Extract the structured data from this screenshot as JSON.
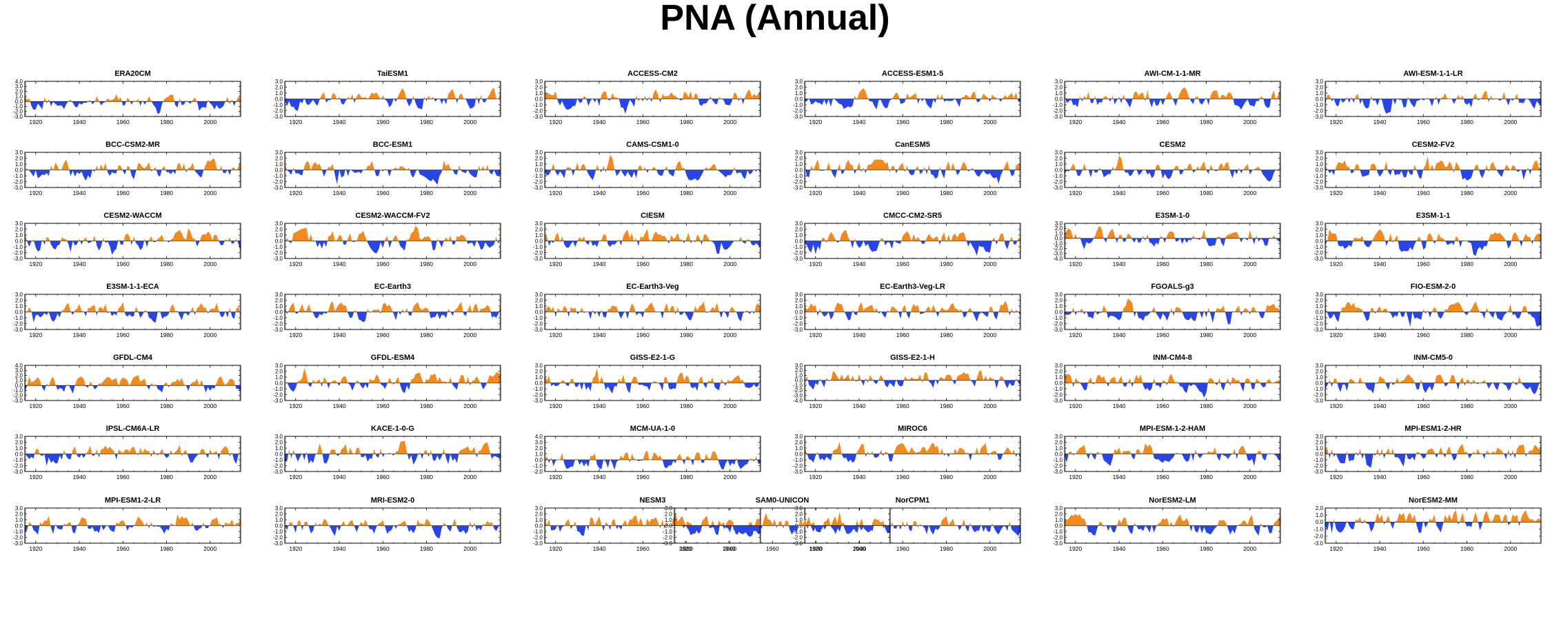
{
  "page": {
    "title": "PNA (Annual)"
  },
  "colors": {
    "positive": "#f28a1e",
    "negative": "#2945e6",
    "axis": "#000000"
  },
  "chart_data": [
    {
      "type": "area",
      "title": "ERA20CM",
      "ylim": [
        -3,
        4
      ],
      "ytick_labels": [
        "-3.0",
        "-2.0",
        "-1.0",
        "0.0",
        "1.0",
        "2.0",
        "3.0",
        "4.0"
      ],
      "xtick_labels": [
        "1920",
        "1940",
        "1960",
        "1980",
        "2000"
      ],
      "x_range": [
        1915,
        2014
      ],
      "seed": 11
    },
    {
      "type": "area",
      "title": "TaiESM1",
      "ylim": [
        -3,
        3
      ],
      "ytick_labels": [
        "-3.0",
        "-2.0",
        "-1.0",
        "0.0",
        "1.0",
        "2.0",
        "3.0"
      ],
      "xtick_labels": [
        "1920",
        "1940",
        "1960",
        "1980",
        "2000"
      ],
      "x_range": [
        1915,
        2014
      ],
      "seed": 12
    },
    {
      "type": "area",
      "title": "ACCESS-CM2",
      "ylim": [
        -3,
        3
      ],
      "ytick_labels": [
        "-3.0",
        "-2.0",
        "-1.0",
        "0.0",
        "1.0",
        "2.0",
        "3.0"
      ],
      "xtick_labels": [
        "1920",
        "1940",
        "1960",
        "1980",
        "2000"
      ],
      "x_range": [
        1915,
        2014
      ],
      "seed": 13
    },
    {
      "type": "area",
      "title": "ACCESS-ESM1-5",
      "ylim": [
        -3,
        3
      ],
      "ytick_labels": [
        "-3.0",
        "-2.0",
        "-1.0",
        "0.0",
        "1.0",
        "2.0",
        "3.0"
      ],
      "xtick_labels": [
        "1920",
        "1940",
        "1960",
        "1980",
        "2000"
      ],
      "x_range": [
        1915,
        2014
      ],
      "seed": 14
    },
    {
      "type": "area",
      "title": "AWI-CM-1-1-MR",
      "ylim": [
        -3,
        3
      ],
      "ytick_labels": [
        "-3.0",
        "-2.0",
        "-1.0",
        "0.0",
        "1.0",
        "2.0",
        "3.0"
      ],
      "xtick_labels": [
        "1920",
        "1940",
        "1960",
        "1980",
        "2000"
      ],
      "x_range": [
        1915,
        2014
      ],
      "seed": 15
    },
    {
      "type": "area",
      "title": "AWI-ESM-1-1-LR",
      "ylim": [
        -3,
        3
      ],
      "ytick_labels": [
        "-3.0",
        "-2.0",
        "-1.0",
        "0.0",
        "1.0",
        "2.0",
        "3.0"
      ],
      "xtick_labels": [
        "1920",
        "1940",
        "1960",
        "1980",
        "2000"
      ],
      "x_range": [
        1915,
        2014
      ],
      "seed": 16
    },
    {
      "type": "area",
      "title": "BCC-CSM2-MR",
      "ylim": [
        -3,
        3
      ],
      "ytick_labels": [
        "-3.0",
        "-2.0",
        "-1.0",
        "0.0",
        "1.0",
        "2.0",
        "3.0"
      ],
      "xtick_labels": [
        "1920",
        "1940",
        "1960",
        "1980",
        "2000"
      ],
      "x_range": [
        1915,
        2014
      ],
      "seed": 21
    },
    {
      "type": "area",
      "title": "BCC-ESM1",
      "ylim": [
        -3,
        3
      ],
      "ytick_labels": [
        "-3.0",
        "-2.0",
        "-1.0",
        "0.0",
        "1.0",
        "2.0",
        "3.0"
      ],
      "xtick_labels": [
        "1920",
        "1940",
        "1960",
        "1980",
        "2000"
      ],
      "x_range": [
        1915,
        2014
      ],
      "seed": 22
    },
    {
      "type": "area",
      "title": "CAMS-CSM1-0",
      "ylim": [
        -3,
        3
      ],
      "ytick_labels": [
        "-3.0",
        "-2.0",
        "-1.0",
        "0.0",
        "1.0",
        "2.0",
        "3.0"
      ],
      "xtick_labels": [
        "1920",
        "1940",
        "1960",
        "1980",
        "2000"
      ],
      "x_range": [
        1915,
        2014
      ],
      "seed": 23
    },
    {
      "type": "area",
      "title": "CanESM5",
      "ylim": [
        -3,
        3
      ],
      "ytick_labels": [
        "-3.0",
        "-2.0",
        "-1.0",
        "0.0",
        "1.0",
        "2.0",
        "3.0"
      ],
      "xtick_labels": [
        "1920",
        "1940",
        "1960",
        "1980",
        "2000"
      ],
      "x_range": [
        1915,
        2014
      ],
      "seed": 24
    },
    {
      "type": "area",
      "title": "CESM2",
      "ylim": [
        -3,
        3
      ],
      "ytick_labels": [
        "-3.0",
        "-2.0",
        "-1.0",
        "0.0",
        "1.0",
        "2.0",
        "3.0"
      ],
      "xtick_labels": [
        "1920",
        "1940",
        "1960",
        "1980",
        "2000"
      ],
      "x_range": [
        1915,
        2014
      ],
      "seed": 25
    },
    {
      "type": "area",
      "title": "CESM2-FV2",
      "ylim": [
        -3,
        3
      ],
      "ytick_labels": [
        "-3.0",
        "-2.0",
        "-1.0",
        "0.0",
        "1.0",
        "2.0",
        "3.0"
      ],
      "xtick_labels": [
        "1920",
        "1940",
        "1960",
        "1980",
        "2000"
      ],
      "x_range": [
        1915,
        2014
      ],
      "seed": 26
    },
    {
      "type": "area",
      "title": "CESM2-WACCM",
      "ylim": [
        -3,
        3
      ],
      "ytick_labels": [
        "-3.0",
        "-2.0",
        "-1.0",
        "0.0",
        "1.0",
        "2.0",
        "3.0"
      ],
      "xtick_labels": [
        "1920",
        "1940",
        "1960",
        "1980",
        "2000"
      ],
      "x_range": [
        1915,
        2014
      ],
      "seed": 31
    },
    {
      "type": "area",
      "title": "CESM2-WACCM-FV2",
      "ylim": [
        -3,
        3
      ],
      "ytick_labels": [
        "-3.0",
        "-2.0",
        "-1.0",
        "0.0",
        "1.0",
        "2.0",
        "3.0"
      ],
      "xtick_labels": [
        "1920",
        "1940",
        "1960",
        "1980",
        "2000"
      ],
      "x_range": [
        1915,
        2014
      ],
      "seed": 32
    },
    {
      "type": "area",
      "title": "CIESM",
      "ylim": [
        -3,
        3
      ],
      "ytick_labels": [
        "-3.0",
        "-2.0",
        "-1.0",
        "0.0",
        "1.0",
        "2.0",
        "3.0"
      ],
      "xtick_labels": [
        "1920",
        "1940",
        "1960",
        "1980",
        "2000"
      ],
      "x_range": [
        1915,
        2014
      ],
      "seed": 33
    },
    {
      "type": "area",
      "title": "CMCC-CM2-SR5",
      "ylim": [
        -3,
        3
      ],
      "ytick_labels": [
        "-3.0",
        "-2.0",
        "-1.0",
        "0.0",
        "1.0",
        "2.0",
        "3.0"
      ],
      "xtick_labels": [
        "1920",
        "1940",
        "1960",
        "1980",
        "2000"
      ],
      "x_range": [
        1915,
        2014
      ],
      "seed": 34
    },
    {
      "type": "area",
      "title": "E3SM-1-0",
      "ylim": [
        -4,
        3
      ],
      "ytick_labels": [
        "-4.0",
        "-3.0",
        "-2.0",
        "-1.0",
        "0.0",
        "1.0",
        "2.0",
        "3.0"
      ],
      "xtick_labels": [
        "1920",
        "1940",
        "1960",
        "1980",
        "2000"
      ],
      "x_range": [
        1915,
        2014
      ],
      "seed": 35
    },
    {
      "type": "area",
      "title": "E3SM-1-1",
      "ylim": [
        -3,
        3
      ],
      "ytick_labels": [
        "-3.0",
        "-2.0",
        "-1.0",
        "0.0",
        "1.0",
        "2.0",
        "3.0"
      ],
      "xtick_labels": [
        "1920",
        "1940",
        "1960",
        "1980",
        "2000"
      ],
      "x_range": [
        1915,
        2014
      ],
      "seed": 36
    },
    {
      "type": "area",
      "title": "E3SM-1-1-ECA",
      "ylim": [
        -3,
        3
      ],
      "ytick_labels": [
        "-3.0",
        "-2.0",
        "-1.0",
        "0.0",
        "1.0",
        "2.0",
        "3.0"
      ],
      "xtick_labels": [
        "1920",
        "1940",
        "1960",
        "1980",
        "2000"
      ],
      "x_range": [
        1915,
        2014
      ],
      "seed": 41
    },
    {
      "type": "area",
      "title": "EC-Earth3",
      "ylim": [
        -3,
        3
      ],
      "ytick_labels": [
        "-3.0",
        "-2.0",
        "-1.0",
        "0.0",
        "1.0",
        "2.0",
        "3.0"
      ],
      "xtick_labels": [
        "1920",
        "1940",
        "1960",
        "1980",
        "2000"
      ],
      "x_range": [
        1915,
        2014
      ],
      "seed": 42
    },
    {
      "type": "area",
      "title": "EC-Earth3-Veg",
      "ylim": [
        -3,
        3
      ],
      "ytick_labels": [
        "-3.0",
        "-2.0",
        "-1.0",
        "0.0",
        "1.0",
        "2.0",
        "3.0"
      ],
      "xtick_labels": [
        "1920",
        "1940",
        "1960",
        "1980",
        "2000"
      ],
      "x_range": [
        1915,
        2014
      ],
      "seed": 43
    },
    {
      "type": "area",
      "title": "EC-Earth3-Veg-LR",
      "ylim": [
        -3,
        3
      ],
      "ytick_labels": [
        "-3.0",
        "-2.0",
        "-1.0",
        "0.0",
        "1.0",
        "2.0",
        "3.0"
      ],
      "xtick_labels": [
        "1920",
        "1940",
        "1960",
        "1980",
        "2000"
      ],
      "x_range": [
        1915,
        2014
      ],
      "seed": 44
    },
    {
      "type": "area",
      "title": "FGOALS-g3",
      "ylim": [
        -3,
        3
      ],
      "ytick_labels": [
        "-3.0",
        "-2.0",
        "-1.0",
        "0.0",
        "1.0",
        "2.0",
        "3.0"
      ],
      "xtick_labels": [
        "1920",
        "1940",
        "1960",
        "1980",
        "2000"
      ],
      "x_range": [
        1915,
        2014
      ],
      "seed": 45
    },
    {
      "type": "area",
      "title": "FIO-ESM-2-0",
      "ylim": [
        -3,
        3
      ],
      "ytick_labels": [
        "-3.0",
        "-2.0",
        "-1.0",
        "0.0",
        "1.0",
        "2.0",
        "3.0"
      ],
      "xtick_labels": [
        "1920",
        "1940",
        "1960",
        "1980",
        "2000"
      ],
      "x_range": [
        1915,
        2014
      ],
      "seed": 46
    },
    {
      "type": "area",
      "title": "GFDL-CM4",
      "ylim": [
        -3,
        4
      ],
      "ytick_labels": [
        "-3.0",
        "-2.0",
        "-1.0",
        "0.0",
        "1.0",
        "2.0",
        "3.0",
        "4.0"
      ],
      "xtick_labels": [
        "1920",
        "1940",
        "1960",
        "1980",
        "2000"
      ],
      "x_range": [
        1915,
        2014
      ],
      "seed": 51
    },
    {
      "type": "area",
      "title": "GFDL-ESM4",
      "ylim": [
        -3,
        3
      ],
      "ytick_labels": [
        "-3.0",
        "-2.0",
        "-1.0",
        "0.0",
        "1.0",
        "2.0",
        "3.0"
      ],
      "xtick_labels": [
        "1920",
        "1940",
        "1960",
        "1980",
        "2000"
      ],
      "x_range": [
        1915,
        2014
      ],
      "seed": 52
    },
    {
      "type": "area",
      "title": "GISS-E2-1-G",
      "ylim": [
        -3,
        3
      ],
      "ytick_labels": [
        "-3.0",
        "-2.0",
        "-1.0",
        "0.0",
        "1.0",
        "2.0",
        "3.0"
      ],
      "xtick_labels": [
        "1920",
        "1940",
        "1960",
        "1980",
        "2000"
      ],
      "x_range": [
        1915,
        2014
      ],
      "seed": 53
    },
    {
      "type": "area",
      "title": "GISS-E2-1-H",
      "ylim": [
        -4,
        3
      ],
      "ytick_labels": [
        "-4.0",
        "-3.0",
        "-2.0",
        "-1.0",
        "0.0",
        "1.0",
        "2.0",
        "3.0"
      ],
      "xtick_labels": [
        "1920",
        "1940",
        "1960",
        "1980",
        "2000"
      ],
      "x_range": [
        1915,
        2014
      ],
      "seed": 54
    },
    {
      "type": "area",
      "title": "INM-CM4-8",
      "ylim": [
        -3,
        3
      ],
      "ytick_labels": [
        "-3.0",
        "-2.0",
        "-1.0",
        "0.0",
        "1.0",
        "2.0",
        "3.0"
      ],
      "xtick_labels": [
        "1920",
        "1940",
        "1960",
        "1980",
        "2000"
      ],
      "x_range": [
        1915,
        2014
      ],
      "seed": 55
    },
    {
      "type": "area",
      "title": "INM-CM5-0",
      "ylim": [
        -3,
        3
      ],
      "ytick_labels": [
        "-3.0",
        "-2.0",
        "-1.0",
        "0.0",
        "1.0",
        "2.0",
        "3.0"
      ],
      "xtick_labels": [
        "1920",
        "1940",
        "1960",
        "1980",
        "2000"
      ],
      "x_range": [
        1915,
        2014
      ],
      "seed": 56
    },
    {
      "type": "area",
      "title": "IPSL-CM6A-LR",
      "ylim": [
        -3,
        3
      ],
      "ytick_labels": [
        "-3.0",
        "-2.0",
        "-1.0",
        "0.0",
        "1.0",
        "2.0",
        "3.0"
      ],
      "xtick_labels": [
        "1920",
        "1940",
        "1960",
        "1980",
        "2000"
      ],
      "x_range": [
        1915,
        2014
      ],
      "seed": 61
    },
    {
      "type": "area",
      "title": "KACE-1-0-G",
      "ylim": [
        -3,
        3
      ],
      "ytick_labels": [
        "-3.0",
        "-2.0",
        "-1.0",
        "0.0",
        "1.0",
        "2.0",
        "3.0"
      ],
      "xtick_labels": [
        "1920",
        "1940",
        "1960",
        "1980",
        "2000"
      ],
      "x_range": [
        1915,
        2014
      ],
      "seed": 62
    },
    {
      "type": "area",
      "title": "MCM-UA-1-0",
      "ylim": [
        -2,
        4
      ],
      "ytick_labels": [
        "-2.0",
        "-1.0",
        "0.0",
        "1.0",
        "2.0",
        "3.0",
        "4.0"
      ],
      "xtick_labels": [
        "1920",
        "1940",
        "1960",
        "1980",
        "2000"
      ],
      "x_range": [
        1915,
        2014
      ],
      "seed": 63
    },
    {
      "type": "area",
      "title": "MIROC6",
      "ylim": [
        -3,
        3
      ],
      "ytick_labels": [
        "-3.0",
        "-2.0",
        "-1.0",
        "0.0",
        "1.0",
        "2.0",
        "3.0"
      ],
      "xtick_labels": [
        "1920",
        "1940",
        "1960",
        "1980",
        "2000"
      ],
      "x_range": [
        1915,
        2014
      ],
      "seed": 64
    },
    {
      "type": "area",
      "title": "MPI-ESM-1-2-HAM",
      "ylim": [
        -3,
        3
      ],
      "ytick_labels": [
        "-3.0",
        "-2.0",
        "-1.0",
        "0.0",
        "1.0",
        "2.0",
        "3.0"
      ],
      "xtick_labels": [
        "1920",
        "1940",
        "1960",
        "1980",
        "2000"
      ],
      "x_range": [
        1915,
        2014
      ],
      "seed": 65
    },
    {
      "type": "area",
      "title": "MPI-ESM1-2-HR",
      "ylim": [
        -3,
        3
      ],
      "ytick_labels": [
        "-3.0",
        "-2.0",
        "-1.0",
        "0.0",
        "1.0",
        "2.0",
        "3.0"
      ],
      "xtick_labels": [
        "1920",
        "1940",
        "1960",
        "1980",
        "2000"
      ],
      "x_range": [
        1915,
        2014
      ],
      "seed": 66
    },
    {
      "type": "area",
      "title": "MPI-ESM1-2-LR",
      "ylim": [
        -3,
        3
      ],
      "ytick_labels": [
        "-3.0",
        "-2.0",
        "-1.0",
        "0.0",
        "1.0",
        "2.0",
        "3.0"
      ],
      "xtick_labels": [
        "1920",
        "1940",
        "1960",
        "1980",
        "2000"
      ],
      "x_range": [
        1915,
        2014
      ],
      "seed": 71
    },
    {
      "type": "area",
      "title": "MRI-ESM2-0",
      "ylim": [
        -3,
        3
      ],
      "ytick_labels": [
        "-3.0",
        "-2.0",
        "-1.0",
        "0.0",
        "1.0",
        "2.0",
        "3.0"
      ],
      "xtick_labels": [
        "1920",
        "1940",
        "1960",
        "1980",
        "2000"
      ],
      "x_range": [
        1915,
        2014
      ],
      "seed": 72
    },
    {
      "type": "area",
      "title": "NESM3",
      "ylim": [
        -3,
        3
      ],
      "ytick_labels": [
        "-3.0",
        "-2.0",
        "-1.0",
        "0.0",
        "1.0",
        "2.0",
        "3.0"
      ],
      "xtick_labels": [
        "1920",
        "1940",
        "1960",
        "1980",
        "2000"
      ],
      "x_range": [
        1915,
        2014
      ],
      "seed": 73
    },
    {
      "type": "area",
      "title": "NorCPM1",
      "ylim": [
        -3,
        3
      ],
      "ytick_labels": [
        "-3.0",
        "-2.0",
        "-1.0",
        "0.0",
        "1.0",
        "2.0",
        "3.0"
      ],
      "xtick_labels": [
        "1920",
        "1940",
        "1960",
        "1980",
        "2000"
      ],
      "x_range": [
        1915,
        2014
      ],
      "seed": 74
    },
    {
      "type": "area",
      "title": "NorESM2-LM",
      "ylim": [
        -3,
        3
      ],
      "ytick_labels": [
        "-3.0",
        "-2.0",
        "-1.0",
        "0.0",
        "1.0",
        "2.0",
        "3.0"
      ],
      "xtick_labels": [
        "1920",
        "1940",
        "1960",
        "1980",
        "2000"
      ],
      "x_range": [
        1915,
        2014
      ],
      "seed": 75
    },
    {
      "type": "area",
      "title": "NorESM2-MM",
      "ylim": [
        -3,
        2
      ],
      "ytick_labels": [
        "-3.0",
        "-2.0",
        "-1.0",
        "0.0",
        "1.0",
        "2.0"
      ],
      "xtick_labels": [
        "1920",
        "1940",
        "1960",
        "1980",
        "2000"
      ],
      "x_range": [
        1915,
        2014
      ],
      "seed": 76
    },
    {
      "type": "area",
      "title": "SAM0-UNICON",
      "ylim": [
        -3,
        3
      ],
      "ytick_labels": [
        "-3.0",
        "-2.0",
        "-1.0",
        "0.0",
        "1.0",
        "2.0",
        "3.0"
      ],
      "xtick_labels": [
        "1920",
        "1940",
        "1960",
        "1980",
        "2000"
      ],
      "x_range": [
        1915,
        2014
      ],
      "seed": 81
    }
  ]
}
